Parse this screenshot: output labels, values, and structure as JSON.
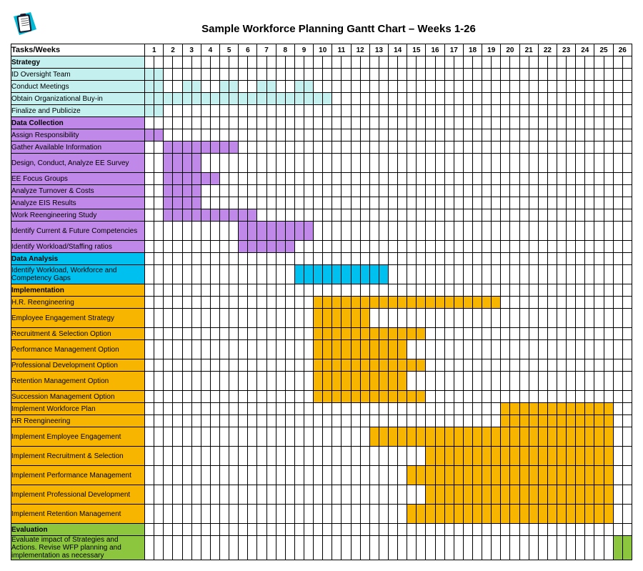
{
  "title": "Sample Workforce Planning Gantt Chart – Weeks 1-26",
  "tasks_label": "Tasks/Weeks",
  "weeks": 26,
  "week_split": 2,
  "colors": {
    "strategy": "#c5f0f0",
    "data_collection": "#c088e8",
    "data_analysis": "#00c0f0",
    "implementation": "#f7b500",
    "evaluation": "#8cc63f",
    "grid": "#000000",
    "bg": "#ffffff"
  },
  "rows": [
    {
      "type": "cat",
      "label": "Strategy",
      "color": "#c5f0f0"
    },
    {
      "type": "task",
      "label": "ID Oversight Team",
      "color": "#c5f0f0",
      "bars": [
        [
          1,
          1
        ]
      ]
    },
    {
      "type": "task",
      "label": "Conduct Meetings",
      "color": "#c5f0f0",
      "bars": [
        [
          1,
          1
        ],
        [
          3,
          3
        ],
        [
          5,
          5
        ],
        [
          7,
          7
        ],
        [
          9,
          9
        ]
      ]
    },
    {
      "type": "task",
      "label": "Obtain Organizational Buy-in",
      "color": "#c5f0f0",
      "bars": [
        [
          1,
          10
        ]
      ]
    },
    {
      "type": "task",
      "label": "Finalize and Publicize",
      "color": "#c5f0f0",
      "bars": [
        [
          1,
          1
        ]
      ]
    },
    {
      "type": "cat",
      "label": "Data Collection",
      "color": "#c088e8"
    },
    {
      "type": "task",
      "label": "Assign Responsibility",
      "color": "#c088e8",
      "bars": [
        [
          1,
          1
        ]
      ]
    },
    {
      "type": "task",
      "label": "Gather Available Information",
      "color": "#c088e8",
      "bars": [
        [
          2,
          5
        ]
      ]
    },
    {
      "type": "task",
      "label": "Design, Conduct, Analyze EE Survey",
      "color": "#c088e8",
      "bars": [
        [
          2,
          3
        ]
      ],
      "height": "med"
    },
    {
      "type": "task",
      "label": "EE Focus Groups",
      "color": "#c088e8",
      "bars": [
        [
          2,
          4
        ]
      ]
    },
    {
      "type": "task",
      "label": "Analyze Turnover & Costs",
      "color": "#c088e8",
      "bars": [
        [
          2,
          3
        ]
      ]
    },
    {
      "type": "task",
      "label": "Analyze EIS Results",
      "color": "#c088e8",
      "bars": [
        [
          2,
          3
        ]
      ]
    },
    {
      "type": "task",
      "label": "Work Reengineering Study",
      "color": "#c088e8",
      "bars": [
        [
          2,
          6
        ]
      ]
    },
    {
      "type": "task",
      "label": "Identify Current & Future Competencies",
      "color": "#c088e8",
      "bars": [
        [
          6,
          9
        ]
      ],
      "height": "med"
    },
    {
      "type": "task",
      "label": "Identify Workload/Staffing ratios",
      "color": "#c088e8",
      "bars": [
        [
          6,
          8
        ]
      ]
    },
    {
      "type": "cat",
      "label": "Data Analysis",
      "color": "#00c0f0"
    },
    {
      "type": "task",
      "label": "Identify Workload, Workforce and Competency  Gaps",
      "color": "#00c0f0",
      "bars": [
        [
          9,
          13
        ]
      ],
      "height": "med"
    },
    {
      "type": "cat",
      "label": "Implementation",
      "color": "#f7b500"
    },
    {
      "type": "task",
      "label": "H.R. Reengineering",
      "color": "#f7b500",
      "bars": [
        [
          10,
          19
        ]
      ]
    },
    {
      "type": "task",
      "label": "Employee Engagement Strategy",
      "color": "#f7b500",
      "bars": [
        [
          10,
          12
        ]
      ],
      "height": "med"
    },
    {
      "type": "task",
      "label": "Recruitment & Selection Option",
      "color": "#f7b500",
      "bars": [
        [
          10,
          15
        ]
      ]
    },
    {
      "type": "task",
      "label": "Performance Management Option",
      "color": "#f7b500",
      "bars": [
        [
          10,
          14
        ]
      ],
      "height": "med"
    },
    {
      "type": "task",
      "label": "Professional Development Option",
      "color": "#f7b500",
      "bars": [
        [
          10,
          15
        ]
      ]
    },
    {
      "type": "task",
      "label": "Retention Management Option",
      "color": "#f7b500",
      "bars": [
        [
          10,
          14
        ]
      ],
      "height": "med"
    },
    {
      "type": "task",
      "label": "Succession Management Option",
      "color": "#f7b500",
      "bars": [
        [
          10,
          15
        ]
      ]
    },
    {
      "type": "task",
      "label": "Implement Workforce Plan",
      "color": "#f7b500",
      "bars": [
        [
          20,
          25
        ]
      ]
    },
    {
      "type": "task",
      "label": "HR Reengineering",
      "color": "#f7b500",
      "bars": [
        [
          20,
          25
        ]
      ]
    },
    {
      "type": "task",
      "label": "Implement Employee Engagement",
      "color": "#f7b500",
      "bars": [
        [
          13,
          25
        ]
      ],
      "height": "med"
    },
    {
      "type": "task",
      "label": "Implement Recruitment & Selection",
      "color": "#f7b500",
      "bars": [
        [
          16,
          25
        ]
      ],
      "height": "med"
    },
    {
      "type": "task",
      "label": "Implement Performance Management",
      "color": "#f7b500",
      "bars": [
        [
          15,
          25
        ]
      ],
      "height": "med"
    },
    {
      "type": "task",
      "label": "Implement Professional Development",
      "color": "#f7b500",
      "bars": [
        [
          16,
          25
        ]
      ],
      "height": "med"
    },
    {
      "type": "task",
      "label": "Implement Retention Management",
      "color": "#f7b500",
      "bars": [
        [
          15,
          25
        ]
      ],
      "height": "med"
    },
    {
      "type": "cat",
      "label": "Evaluation",
      "color": "#8cc63f"
    },
    {
      "type": "task",
      "label": "Evaluate impact of Strategies and Actions. Revise WFP planning and implementation as necessary",
      "color": "#8cc63f",
      "bars": [
        [
          26,
          26
        ]
      ],
      "height": "tall"
    }
  ]
}
